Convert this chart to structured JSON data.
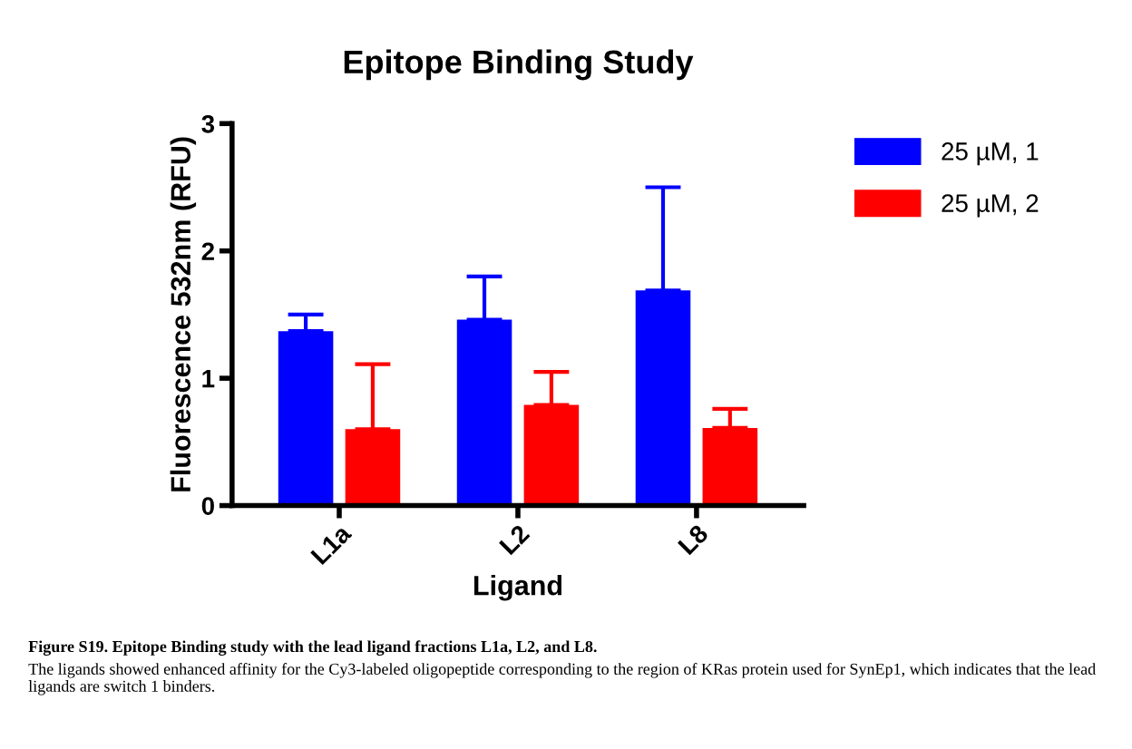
{
  "chart_data": {
    "type": "bar",
    "title": "Epitope Binding Study",
    "xlabel": "Ligand",
    "ylabel": "Fluorescence 532nm (RFU)",
    "categories": [
      "L1a",
      "L2",
      "L8"
    ],
    "series": [
      {
        "name": "25 µM, 1",
        "color": "#0000ff",
        "values": [
          1.37,
          1.46,
          1.69
        ],
        "errors": [
          [
            1.37,
            1.5
          ],
          [
            1.46,
            1.8
          ],
          [
            1.69,
            2.5
          ]
        ]
      },
      {
        "name": "25 µM, 2",
        "color": "#ff0000",
        "values": [
          0.6,
          0.79,
          0.61
        ],
        "errors": [
          [
            0.6,
            1.11
          ],
          [
            0.79,
            1.05
          ],
          [
            0.61,
            0.76
          ]
        ]
      }
    ],
    "ylim": [
      0,
      3
    ],
    "yticks": [
      0,
      1,
      2,
      3
    ],
    "grid": false,
    "legend": "top right",
    "annotations": [
      "Figure S19. Epitope Binding study with the lead ligand fractions L1a, L2, and L8.",
      "The ligands showed enhanced affinity for the Cy3-labeled oligopeptide corresponding to the region of KRas protein used for SynEp1, which indicates that the lead ligands are switch 1 binders."
    ]
  }
}
